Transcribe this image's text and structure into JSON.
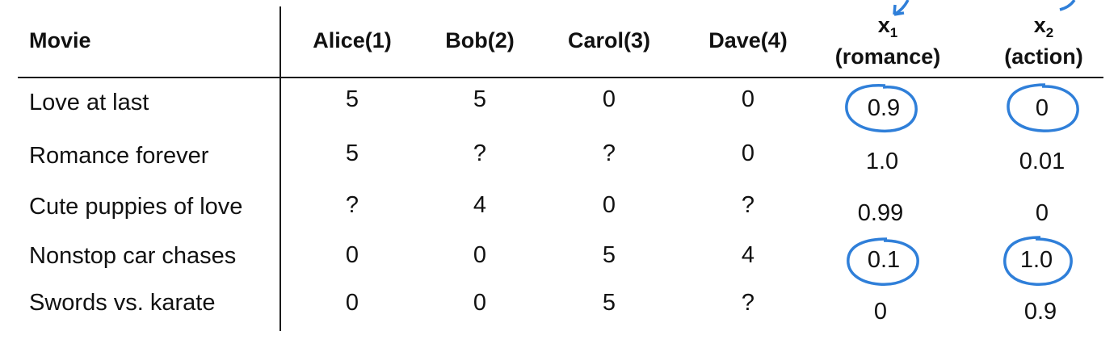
{
  "table": {
    "headers": {
      "movie": "Movie",
      "users": [
        "Alice(1)",
        "Bob(2)",
        "Carol(3)",
        "Dave(4)"
      ],
      "features": [
        {
          "symbol": "x",
          "subscript": "1",
          "label": "(romance)"
        },
        {
          "symbol": "x",
          "subscript": "2",
          "label": "(action)"
        }
      ]
    },
    "rows": [
      {
        "movie": "Love at last",
        "ratings": [
          "5",
          "5",
          "0",
          "0"
        ],
        "features": [
          "0.9",
          "0"
        ]
      },
      {
        "movie": "Romance forever",
        "ratings": [
          "5",
          "?",
          "?",
          "0"
        ],
        "features": [
          "1.0",
          "0.01"
        ]
      },
      {
        "movie": "Cute puppies of love",
        "ratings": [
          "?",
          "4",
          "0",
          "?"
        ],
        "features": [
          "0.99",
          "0"
        ]
      },
      {
        "movie": "Nonstop car chases",
        "ratings": [
          "0",
          "0",
          "5",
          "4"
        ],
        "features": [
          "0.1",
          "1.0"
        ]
      },
      {
        "movie": "Swords vs. karate",
        "ratings": [
          "0",
          "0",
          "5",
          "?"
        ],
        "features": [
          "0",
          "0.9"
        ]
      }
    ]
  },
  "annotation": {
    "color": "#2f7fd9",
    "circled_cells": [
      {
        "row": 0,
        "feature": 0
      },
      {
        "row": 0,
        "feature": 1
      },
      {
        "row": 3,
        "feature": 0
      },
      {
        "row": 3,
        "feature": 1
      }
    ]
  }
}
